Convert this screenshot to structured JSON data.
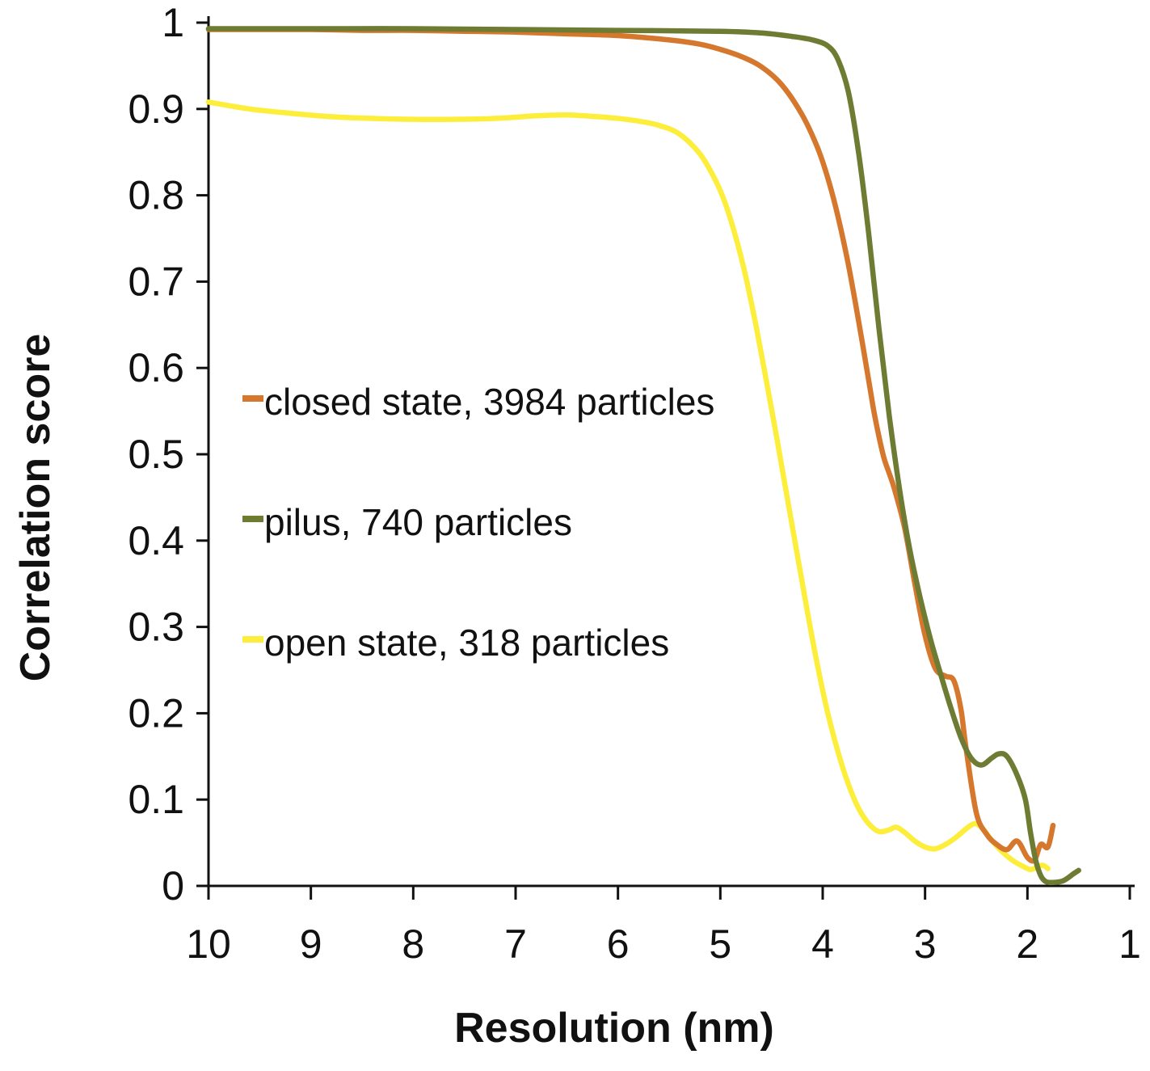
{
  "figure": {
    "background": "#ffffff"
  },
  "chart_data": {
    "type": "line",
    "title": "",
    "xlabel": "Resolution (nm)",
    "ylabel": "Correlation score",
    "xlim": [
      10,
      1
    ],
    "ylim": [
      0,
      1
    ],
    "x_axis_reversed": true,
    "grid": false,
    "legend_position": "inside-left",
    "axis_color": "#111111",
    "x_ticks": [
      {
        "value": 10,
        "label": "10"
      },
      {
        "value": 9,
        "label": "9"
      },
      {
        "value": 8,
        "label": "8"
      },
      {
        "value": 7,
        "label": "7"
      },
      {
        "value": 6,
        "label": "6"
      },
      {
        "value": 5,
        "label": "5"
      },
      {
        "value": 4,
        "label": "4"
      },
      {
        "value": 3,
        "label": "3"
      },
      {
        "value": 2,
        "label": "2"
      },
      {
        "value": 1,
        "label": "1"
      }
    ],
    "y_ticks": [
      {
        "value": 1,
        "label": "1"
      },
      {
        "value": 0.9,
        "label": "0.9"
      },
      {
        "value": 0.8,
        "label": "0.8"
      },
      {
        "value": 0.7,
        "label": "0.7"
      },
      {
        "value": 0.6,
        "label": "0.6"
      },
      {
        "value": 0.5,
        "label": "0.5"
      },
      {
        "value": 0.4,
        "label": "0.4"
      },
      {
        "value": 0.3,
        "label": "0.3"
      },
      {
        "value": 0.2,
        "label": "0.2"
      },
      {
        "value": 0.1,
        "label": "0.1"
      },
      {
        "value": 0,
        "label": "0"
      }
    ],
    "series": [
      {
        "name": "closed state, 3984 particles",
        "color": "#d5782d",
        "points": [
          [
            10,
            0.992
          ],
          [
            9.5,
            0.992
          ],
          [
            9,
            0.992
          ],
          [
            8.5,
            0.991
          ],
          [
            8,
            0.991
          ],
          [
            7.5,
            0.99
          ],
          [
            7,
            0.989
          ],
          [
            6.5,
            0.987
          ],
          [
            6,
            0.985
          ],
          [
            5.5,
            0.98
          ],
          [
            5.2,
            0.975
          ],
          [
            5,
            0.969
          ],
          [
            4.8,
            0.961
          ],
          [
            4.6,
            0.949
          ],
          [
            4.4,
            0.928
          ],
          [
            4.2,
            0.893
          ],
          [
            4.05,
            0.855
          ],
          [
            3.95,
            0.82
          ],
          [
            3.85,
            0.775
          ],
          [
            3.75,
            0.72
          ],
          [
            3.65,
            0.655
          ],
          [
            3.55,
            0.585
          ],
          [
            3.5,
            0.55
          ],
          [
            3.45,
            0.52
          ],
          [
            3.4,
            0.495
          ],
          [
            3.35,
            0.478
          ],
          [
            3.3,
            0.46
          ],
          [
            3.2,
            0.415
          ],
          [
            3.1,
            0.35
          ],
          [
            3.0,
            0.29
          ],
          [
            2.9,
            0.252
          ],
          [
            2.8,
            0.243
          ],
          [
            2.72,
            0.238
          ],
          [
            2.65,
            0.205
          ],
          [
            2.6,
            0.16
          ],
          [
            2.5,
            0.085
          ],
          [
            2.4,
            0.06
          ],
          [
            2.3,
            0.048
          ],
          [
            2.2,
            0.042
          ],
          [
            2.1,
            0.052
          ],
          [
            2.0,
            0.033
          ],
          [
            1.93,
            0.03
          ],
          [
            1.87,
            0.048
          ],
          [
            1.8,
            0.045
          ],
          [
            1.75,
            0.07
          ]
        ]
      },
      {
        "name": "pilus, 740 particles",
        "color": "#6d7b33",
        "points": [
          [
            10,
            0.993
          ],
          [
            9,
            0.993
          ],
          [
            8,
            0.993
          ],
          [
            7,
            0.992
          ],
          [
            6,
            0.991
          ],
          [
            5,
            0.99
          ],
          [
            4.6,
            0.988
          ],
          [
            4.3,
            0.984
          ],
          [
            4.1,
            0.98
          ],
          [
            3.95,
            0.973
          ],
          [
            3.85,
            0.957
          ],
          [
            3.75,
            0.92
          ],
          [
            3.65,
            0.85
          ],
          [
            3.55,
            0.755
          ],
          [
            3.45,
            0.645
          ],
          [
            3.35,
            0.545
          ],
          [
            3.25,
            0.46
          ],
          [
            3.15,
            0.39
          ],
          [
            3.05,
            0.335
          ],
          [
            2.95,
            0.287
          ],
          [
            2.85,
            0.246
          ],
          [
            2.75,
            0.207
          ],
          [
            2.65,
            0.172
          ],
          [
            2.55,
            0.148
          ],
          [
            2.45,
            0.14
          ],
          [
            2.35,
            0.148
          ],
          [
            2.28,
            0.153
          ],
          [
            2.2,
            0.15
          ],
          [
            2.1,
            0.128
          ],
          [
            2.02,
            0.1
          ],
          [
            1.97,
            0.062
          ],
          [
            1.92,
            0.03
          ],
          [
            1.87,
            0.012
          ],
          [
            1.82,
            0.005
          ],
          [
            1.75,
            0.004
          ],
          [
            1.65,
            0.006
          ],
          [
            1.55,
            0.014
          ],
          [
            1.5,
            0.018
          ]
        ]
      },
      {
        "name": "open state, 318 particles",
        "color": "#fdee3b",
        "points": [
          [
            10,
            0.908
          ],
          [
            9.6,
            0.9
          ],
          [
            9.2,
            0.895
          ],
          [
            8.8,
            0.891
          ],
          [
            8.4,
            0.889
          ],
          [
            8,
            0.888
          ],
          [
            7.6,
            0.888
          ],
          [
            7.2,
            0.889
          ],
          [
            6.8,
            0.892
          ],
          [
            6.5,
            0.893
          ],
          [
            6.2,
            0.891
          ],
          [
            6,
            0.889
          ],
          [
            5.8,
            0.886
          ],
          [
            5.6,
            0.881
          ],
          [
            5.4,
            0.871
          ],
          [
            5.2,
            0.848
          ],
          [
            5.05,
            0.818
          ],
          [
            4.95,
            0.79
          ],
          [
            4.85,
            0.752
          ],
          [
            4.75,
            0.705
          ],
          [
            4.65,
            0.648
          ],
          [
            4.55,
            0.585
          ],
          [
            4.45,
            0.52
          ],
          [
            4.35,
            0.452
          ],
          [
            4.25,
            0.385
          ],
          [
            4.15,
            0.318
          ],
          [
            4.05,
            0.255
          ],
          [
            3.95,
            0.2
          ],
          [
            3.85,
            0.155
          ],
          [
            3.75,
            0.118
          ],
          [
            3.65,
            0.09
          ],
          [
            3.55,
            0.072
          ],
          [
            3.45,
            0.063
          ],
          [
            3.35,
            0.065
          ],
          [
            3.28,
            0.068
          ],
          [
            3.2,
            0.062
          ],
          [
            3.1,
            0.052
          ],
          [
            3.0,
            0.045
          ],
          [
            2.9,
            0.043
          ],
          [
            2.8,
            0.048
          ],
          [
            2.7,
            0.056
          ],
          [
            2.6,
            0.066
          ],
          [
            2.52,
            0.072
          ],
          [
            2.45,
            0.068
          ],
          [
            2.35,
            0.053
          ],
          [
            2.25,
            0.04
          ],
          [
            2.15,
            0.03
          ],
          [
            2.05,
            0.023
          ],
          [
            1.97,
            0.019
          ],
          [
            1.9,
            0.022
          ],
          [
            1.85,
            0.024
          ],
          [
            1.8,
            0.02
          ]
        ]
      }
    ]
  }
}
